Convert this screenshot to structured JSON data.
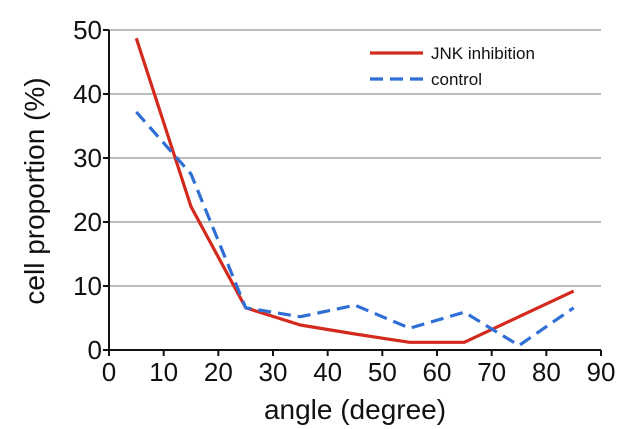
{
  "chart_data": {
    "type": "line",
    "title": "",
    "xlabel": "angle (degree)",
    "ylabel": "cell proportion (%)",
    "xlim": [
      0,
      90
    ],
    "ylim": [
      0,
      50
    ],
    "xticks": [
      0,
      10,
      20,
      30,
      40,
      50,
      60,
      70,
      80,
      90
    ],
    "yticks": [
      0,
      10,
      20,
      30,
      40,
      50
    ],
    "grid": "horizontal",
    "legend_position": "top-right",
    "series": [
      {
        "name": "JNK inhibition",
        "color": "#d42a1e",
        "style": "solid",
        "x": [
          5,
          15,
          25,
          35,
          45,
          55,
          65,
          75,
          85
        ],
        "values": [
          48.7,
          22.4,
          6.6,
          3.9,
          2.5,
          1.2,
          1.2,
          5.2,
          9.2
        ]
      },
      {
        "name": "control",
        "color": "#2f6fd6",
        "style": "dashed",
        "x": [
          5,
          15,
          25,
          35,
          45,
          55,
          65,
          75,
          85
        ],
        "values": [
          37.2,
          27.5,
          6.6,
          5.2,
          7.0,
          3.4,
          5.9,
          0.7,
          6.6
        ]
      }
    ]
  }
}
